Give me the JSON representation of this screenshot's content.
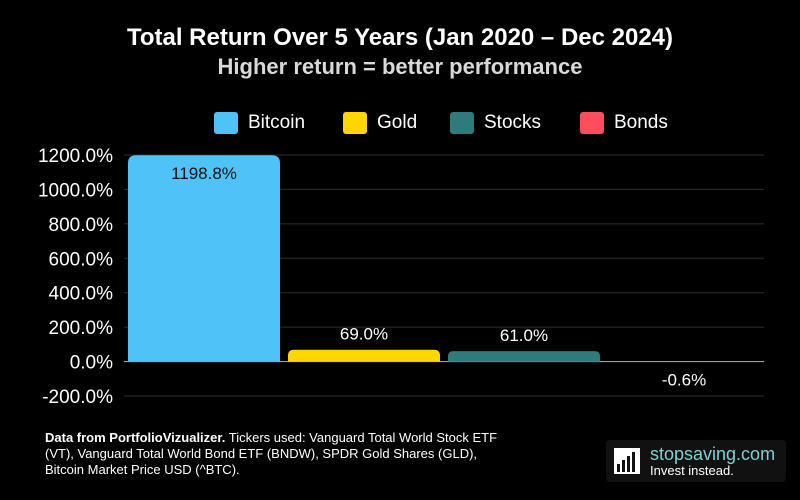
{
  "chart_data": {
    "type": "bar",
    "title": "Total Return Over 5 Years (Jan 2020 – Dec 2024)",
    "subtitle": "Higher return = better performance",
    "categories": [
      "Bitcoin",
      "Gold",
      "Stocks",
      "Bonds"
    ],
    "values": [
      1198.8,
      69.0,
      61.0,
      -0.6
    ],
    "data_labels": [
      "1198.8%",
      "69.0%",
      "61.0%",
      "-0.6%"
    ],
    "colors": [
      "#4fc3f7",
      "#ffd600",
      "#2f7a7c",
      "#ff4d5e"
    ],
    "ylim": [
      -200,
      1200
    ],
    "yticks": [
      -200,
      0,
      200,
      400,
      600,
      800,
      1000,
      1200
    ],
    "ytick_labels": [
      "-200.0%",
      "0.0%",
      "200.0%",
      "400.0%",
      "600.0%",
      "800.0%",
      "1000.0%",
      "1200.0%"
    ],
    "xlabel": "",
    "ylabel": "",
    "grid": true,
    "legend": "top-center"
  },
  "footer": {
    "bold": "Data from PortfolioVizualizer.",
    "text": " Tickers used: Vanguard Total World Stock ETF (VT), Vanguard Total World Bond ETF (BNDW), SPDR Gold Shares (GLD), Bitcoin Market Price USD (^BTC)."
  },
  "brand": {
    "name": "stopsaving.com",
    "tagline": "Invest instead.",
    "icon": "bar-chart-logo-icon"
  }
}
